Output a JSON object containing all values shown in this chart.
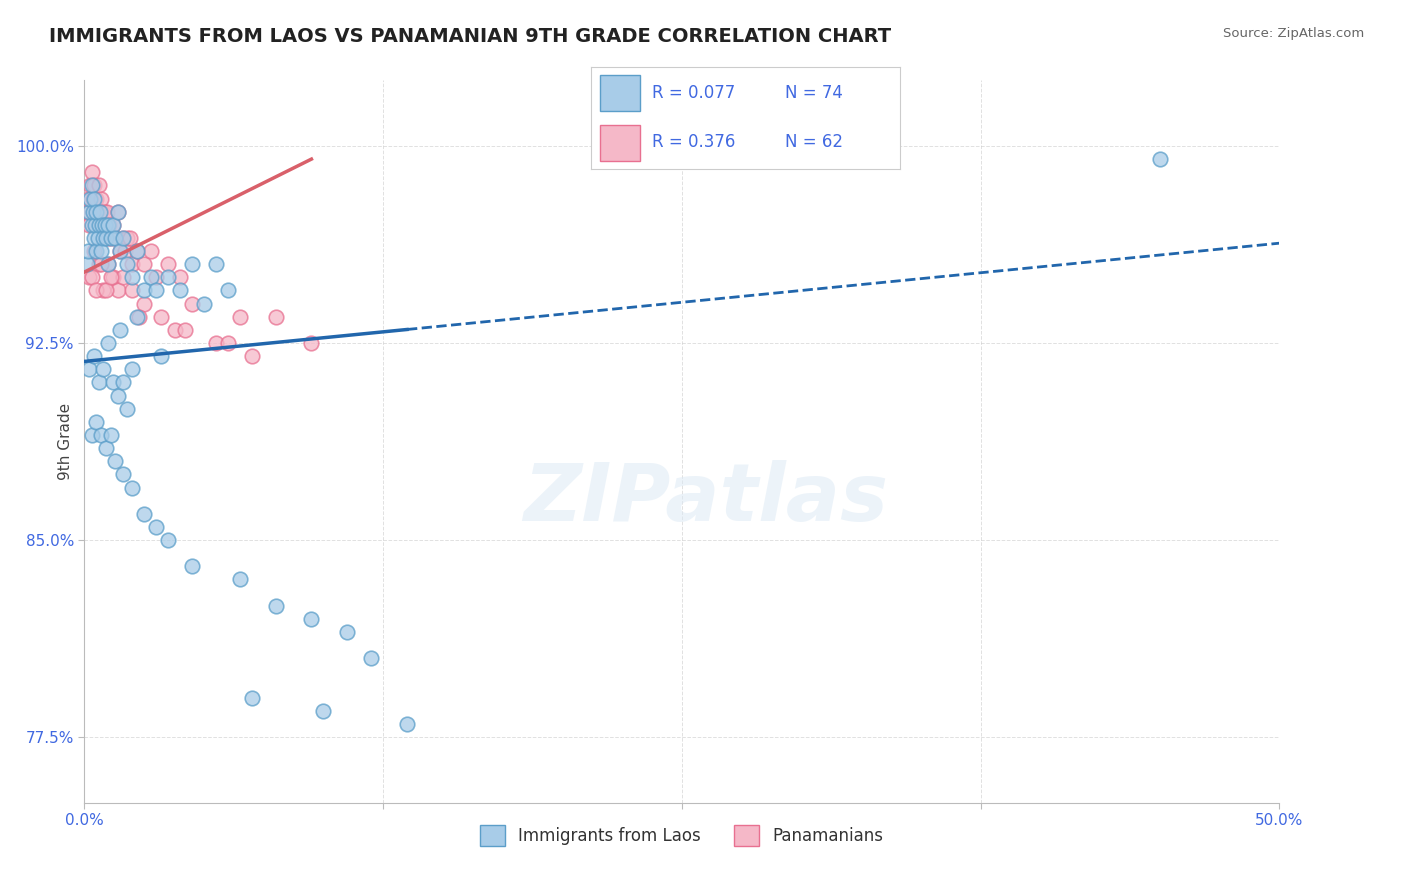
{
  "title": "IMMIGRANTS FROM LAOS VS PANAMANIAN 9TH GRADE CORRELATION CHART",
  "source": "Source: ZipAtlas.com",
  "ylabel": "9th Grade",
  "xlim": [
    0.0,
    50.0
  ],
  "ylim": [
    75.0,
    102.5
  ],
  "yticks": [
    77.5,
    85.0,
    92.5,
    100.0
  ],
  "ytick_labels": [
    "77.5%",
    "85.0%",
    "92.5%",
    "100.0%"
  ],
  "xticks": [
    0.0,
    12.5,
    25.0,
    37.5,
    50.0
  ],
  "xtick_labels": [
    "0.0%",
    "",
    "",
    "",
    "50.0%"
  ],
  "series1_label": "Immigrants from Laos",
  "series1_R": 0.077,
  "series1_N": 74,
  "series1_color": "#a8cce8",
  "series1_edge": "#5b9ec9",
  "series2_label": "Panamanians",
  "series2_R": 0.376,
  "series2_N": 62,
  "series2_color": "#f5b8c8",
  "series2_edge": "#e87090",
  "background_color": "#ffffff",
  "grid_color": "#cccccc",
  "title_color": "#222222",
  "axis_label_color": "#4169e1",
  "trend1_color": "#2166ac",
  "trend2_color": "#d9606a",
  "blue_scatter_x": [
    0.1,
    0.15,
    0.2,
    0.25,
    0.3,
    0.3,
    0.35,
    0.4,
    0.4,
    0.45,
    0.5,
    0.5,
    0.55,
    0.6,
    0.65,
    0.7,
    0.75,
    0.8,
    0.85,
    0.9,
    1.0,
    1.0,
    1.1,
    1.2,
    1.3,
    1.4,
    1.5,
    1.6,
    1.8,
    2.0,
    2.2,
    2.5,
    2.8,
    3.0,
    3.5,
    4.0,
    4.5,
    5.0,
    5.5,
    6.0,
    0.2,
    0.4,
    0.6,
    0.8,
    1.0,
    1.2,
    1.4,
    1.6,
    1.8,
    2.0,
    0.3,
    0.5,
    0.7,
    0.9,
    1.1,
    1.3,
    1.6,
    2.0,
    2.5,
    3.0,
    3.5,
    4.5,
    6.5,
    8.0,
    9.5,
    11.0,
    12.0,
    7.0,
    10.0,
    13.5,
    1.5,
    2.2,
    3.2,
    45.0
  ],
  "blue_scatter_y": [
    95.5,
    96.0,
    97.5,
    98.0,
    98.5,
    97.0,
    97.5,
    98.0,
    96.5,
    97.0,
    96.0,
    97.5,
    96.5,
    97.0,
    97.5,
    96.0,
    97.0,
    96.5,
    97.0,
    96.5,
    97.0,
    95.5,
    96.5,
    97.0,
    96.5,
    97.5,
    96.0,
    96.5,
    95.5,
    95.0,
    96.0,
    94.5,
    95.0,
    94.5,
    95.0,
    94.5,
    95.5,
    94.0,
    95.5,
    94.5,
    91.5,
    92.0,
    91.0,
    91.5,
    92.5,
    91.0,
    90.5,
    91.0,
    90.0,
    91.5,
    89.0,
    89.5,
    89.0,
    88.5,
    89.0,
    88.0,
    87.5,
    87.0,
    86.0,
    85.5,
    85.0,
    84.0,
    83.5,
    82.5,
    82.0,
    81.5,
    80.5,
    79.0,
    78.5,
    78.0,
    93.0,
    93.5,
    92.0,
    99.5
  ],
  "pink_scatter_x": [
    0.1,
    0.15,
    0.2,
    0.25,
    0.3,
    0.35,
    0.4,
    0.45,
    0.5,
    0.55,
    0.6,
    0.65,
    0.7,
    0.75,
    0.8,
    0.85,
    0.9,
    0.95,
    1.0,
    1.05,
    1.1,
    1.2,
    1.3,
    1.4,
    1.5,
    1.6,
    1.7,
    1.8,
    1.9,
    2.0,
    2.2,
    2.5,
    2.8,
    3.0,
    3.5,
    4.0,
    0.2,
    0.4,
    0.6,
    0.8,
    1.0,
    1.2,
    1.4,
    1.6,
    2.0,
    2.5,
    3.2,
    3.8,
    4.5,
    5.5,
    6.5,
    7.0,
    8.0,
    9.5,
    0.3,
    0.5,
    0.7,
    0.9,
    1.1,
    2.3,
    4.2,
    6.0
  ],
  "pink_scatter_y": [
    97.5,
    98.0,
    97.0,
    98.5,
    99.0,
    98.0,
    98.5,
    97.5,
    98.0,
    97.5,
    98.5,
    97.0,
    98.0,
    97.5,
    97.0,
    97.5,
    97.0,
    97.5,
    96.5,
    97.0,
    96.5,
    97.0,
    96.5,
    97.5,
    96.0,
    96.5,
    96.0,
    96.5,
    96.5,
    95.5,
    96.0,
    95.5,
    96.0,
    95.0,
    95.5,
    95.0,
    95.0,
    96.0,
    95.5,
    94.5,
    95.5,
    95.0,
    94.5,
    95.0,
    94.5,
    94.0,
    93.5,
    93.0,
    94.0,
    92.5,
    93.5,
    92.0,
    93.5,
    92.5,
    95.0,
    94.5,
    95.5,
    94.5,
    95.0,
    93.5,
    93.0,
    92.5
  ],
  "trend1_x_solid_end": 13.5,
  "trend1_x_dash_end": 50.0,
  "trend2_x_end": 9.5,
  "watermark": "ZIPatlas"
}
